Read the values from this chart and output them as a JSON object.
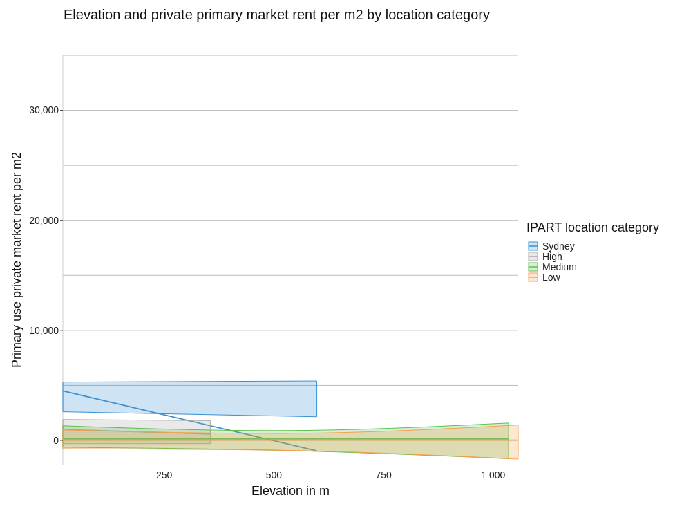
{
  "chart_data": {
    "type": "line",
    "title": "Elevation and private primary market rent per m2 by location category",
    "xlabel": "Elevation in m",
    "ylabel": "Primary use private market rent per m2",
    "legend_title": "IPART location category",
    "legend": "right",
    "grid": "y",
    "xlim": [
      19,
      1057
    ],
    "ylim": [
      -2200,
      35000
    ],
    "xticks": [
      250,
      500,
      750,
      {
        "value": 1000,
        "label": "1 000"
      }
    ],
    "yticks": [
      0,
      {
        "value": 5000,
        "label": null
      },
      {
        "value": 10000,
        "label": "10,000"
      },
      {
        "value": 15000,
        "label": null
      },
      {
        "value": 20000,
        "label": "20,000"
      },
      {
        "value": 25000,
        "label": null
      },
      {
        "value": 30000,
        "label": "30,000"
      },
      {
        "value": 35000,
        "label": null
      }
    ],
    "series": [
      {
        "name": "Sydney",
        "color": "#3a8fd0",
        "x": [
          19,
          598
        ],
        "values": [
          4500,
          -950
        ],
        "lower": [
          2600,
          2150
        ],
        "upper": [
          5300,
          5400
        ]
      },
      {
        "name": "High",
        "color": "#a8a8a8",
        "x": [
          19,
          355
        ],
        "values": [
          1000,
          570
        ],
        "lower": [
          -300,
          -300
        ],
        "upper": [
          1900,
          1800
        ]
      },
      {
        "name": "Medium",
        "color": "#5fbf4f",
        "x": [
          19,
          500,
          1035
        ],
        "values": [
          130,
          130,
          130
        ],
        "lower": [
          -630,
          -890,
          -1650
        ],
        "upper": [
          1330,
          890,
          1580
        ]
      },
      {
        "name": "Low",
        "color": "#f5a050",
        "x": [
          19,
          500,
          1057
        ],
        "values": [
          30,
          30,
          30
        ],
        "lower": [
          -760,
          -890,
          -1700
        ],
        "upper": [
          950,
          630,
          1400
        ]
      }
    ]
  }
}
